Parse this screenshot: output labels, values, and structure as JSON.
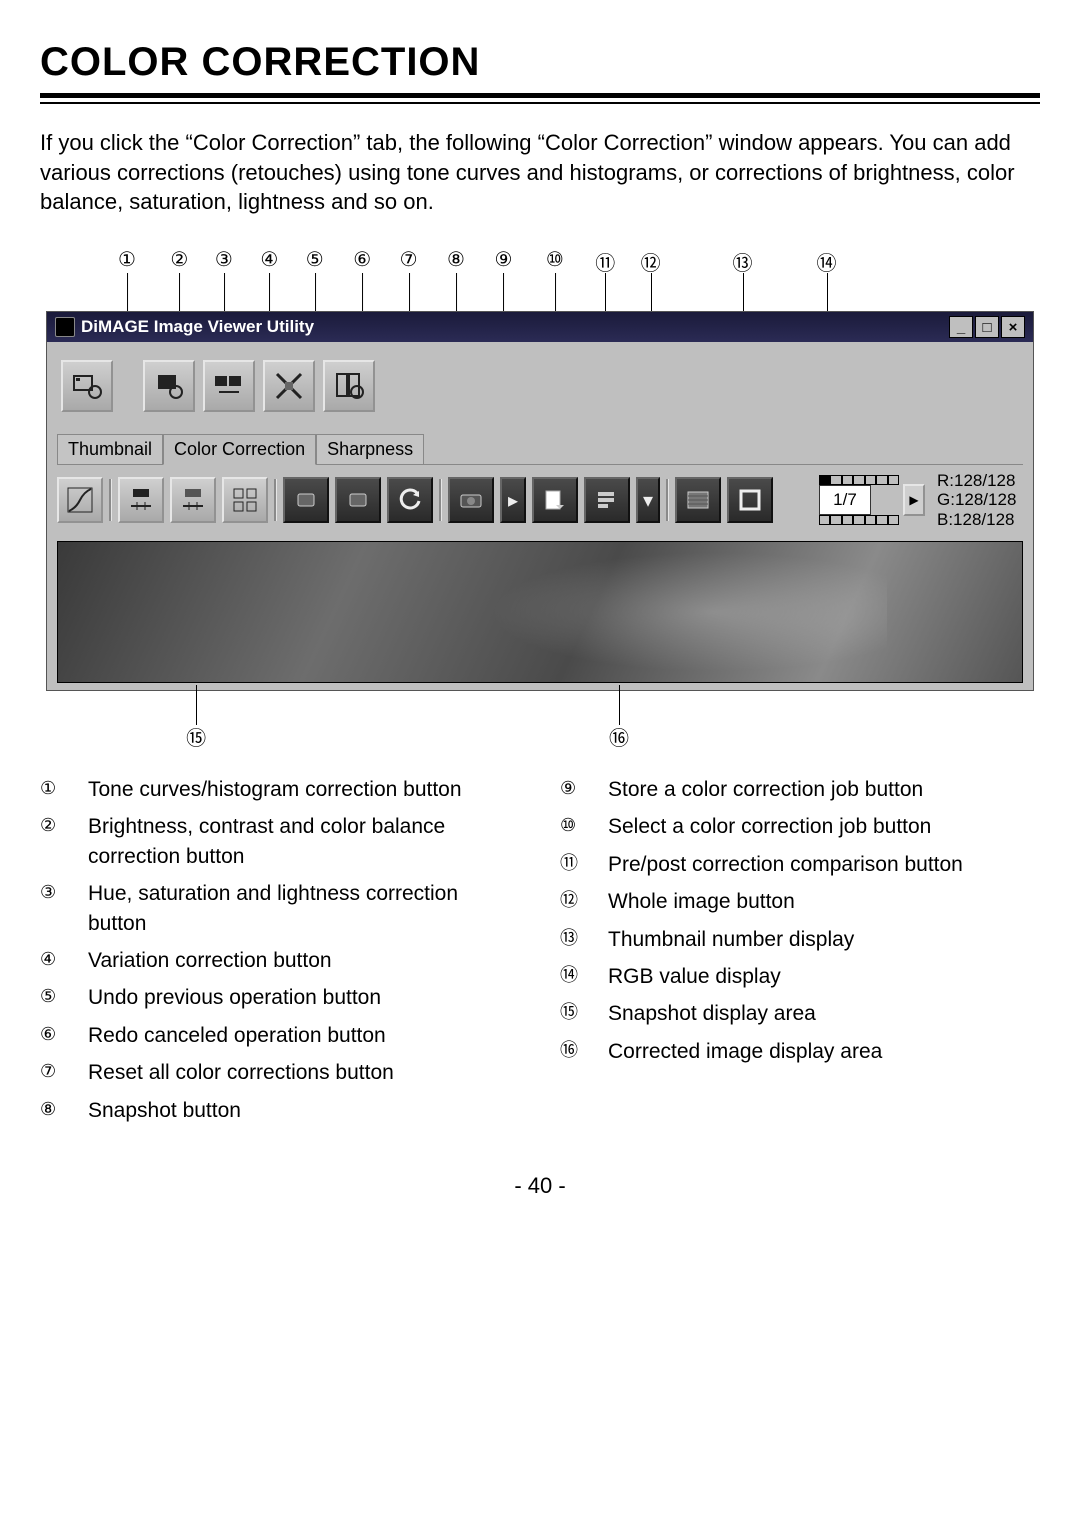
{
  "title": "COLOR CORRECTION",
  "intro": "If you click the “Color Correction” tab, the following “Color Correction” window appears. You can add various corrections (retouches) using tone curves and histograms, or corrections of brightness, color balance, saturation, lightness and so on.",
  "window": {
    "title": "DiMAGE Image Viewer Utility",
    "tabs": {
      "thumbnail": "Thumbnail",
      "color": "Color Correction",
      "sharp": "Sharpness"
    },
    "thumbnail_counter": "1/7",
    "rgb": {
      "r": "R:128/128",
      "g": "G:128/128",
      "b": "B:128/128"
    }
  },
  "calloutsTop": [
    {
      "n": "①",
      "x": 8.2
    },
    {
      "n": "②",
      "x": 13.5
    },
    {
      "n": "③",
      "x": 18.0
    },
    {
      "n": "④",
      "x": 22.6
    },
    {
      "n": "⑤",
      "x": 27.2
    },
    {
      "n": "⑥",
      "x": 32.0
    },
    {
      "n": "⑦",
      "x": 36.7
    },
    {
      "n": "⑧",
      "x": 41.5
    },
    {
      "n": "⑨",
      "x": 46.3
    },
    {
      "n": "⑩",
      "x": 51.5
    },
    {
      "n": "⑪",
      "x": 56.6
    },
    {
      "n": "⑫",
      "x": 61.2
    },
    {
      "n": "⑬",
      "x": 70.5
    },
    {
      "n": "⑭",
      "x": 79.0
    }
  ],
  "calloutsBot": [
    {
      "n": "⑮",
      "x": 15.2
    },
    {
      "n": "⑯",
      "x": 58.0
    }
  ],
  "legendLeft": [
    {
      "n": "①",
      "t": "Tone curves/histogram correction button"
    },
    {
      "n": "②",
      "t": "Brightness, contrast and color balance correction button"
    },
    {
      "n": "③",
      "t": "Hue, saturation and lightness correction button"
    },
    {
      "n": "④",
      "t": "Variation correction button"
    },
    {
      "n": "⑤",
      "t": "Undo previous operation button"
    },
    {
      "n": "⑥",
      "t": "Redo canceled operation button"
    },
    {
      "n": "⑦",
      "t": "Reset all color corrections button"
    },
    {
      "n": "⑧",
      "t": "Snapshot button"
    }
  ],
  "legendRight": [
    {
      "n": "⑨",
      "t": "Store a color correction job button"
    },
    {
      "n": "⑩",
      "t": "Select a color correction job button"
    },
    {
      "n": "⑪",
      "t": "Pre/post correction comparison button"
    },
    {
      "n": "⑫",
      "t": "Whole image button"
    },
    {
      "n": "⑬",
      "t": "Thumbnail number display"
    },
    {
      "n": "⑭",
      "t": "RGB value display"
    },
    {
      "n": "⑮",
      "t": "Snapshot display area"
    },
    {
      "n": "⑯",
      "t": "Corrected image display area"
    }
  ],
  "pageNumber": "- 40 -",
  "colors": {
    "grayUI": "#bfbfbf",
    "darkBtn": "#3a3a3a",
    "titlebar": "#1a1a3a"
  }
}
